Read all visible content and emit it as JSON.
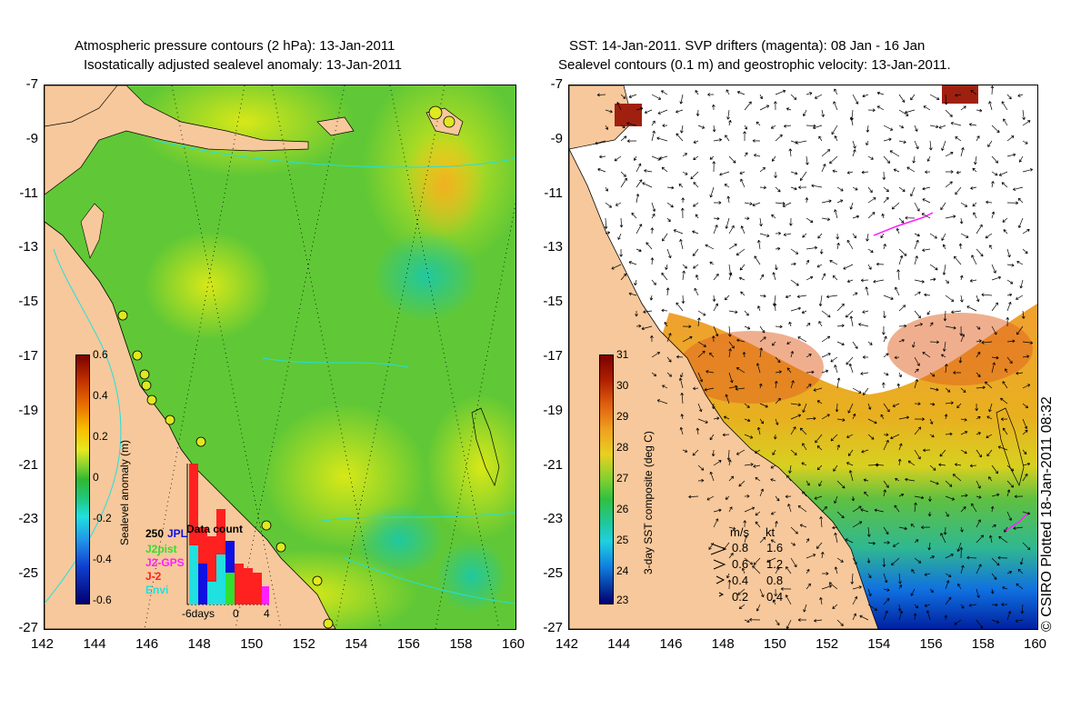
{
  "left": {
    "title1": "Atmospheric pressure contours (2 hPa): 13-Jan-2011",
    "title2": "Isostatically adjusted sealevel anomaly: 13-Jan-2011",
    "colorbar": {
      "label": "Sealevel anomaly (m)",
      "ticks": [
        "0.6",
        "0.4",
        "0.2",
        "0",
        "-0.2",
        "-0.4",
        "-0.6"
      ]
    },
    "data_count": {
      "title": "Data count",
      "ymax": "250",
      "x_labels": [
        "-6days",
        "0",
        "4"
      ],
      "missions": [
        {
          "name": "JPL",
          "color": "#1010e0"
        },
        {
          "name": "J2pist",
          "color": "#30e030"
        },
        {
          "name": "J2-GPS",
          "color": "#ff20ff"
        },
        {
          "name": "J-2",
          "color": "#ff2020"
        },
        {
          "name": "Envi",
          "color": "#20e0e0"
        }
      ]
    }
  },
  "right": {
    "title1": "SST: 14-Jan-2011. SVP drifters (magenta): 08 Jan - 16 Jan",
    "title2": "Sealevel contours (0.1 m) and geostrophic velocity: 13-Jan-2011.",
    "colorbar": {
      "label": "3-day SST composite (deg C)",
      "ticks": [
        "31",
        "30",
        "29",
        "28",
        "27",
        "26",
        "25",
        "24",
        "23"
      ]
    },
    "velocity_legend": {
      "units": [
        "m/s",
        "kt"
      ],
      "rows": [
        {
          "ms": "0.8",
          "kt": "1.6"
        },
        {
          "ms": "0.6",
          "kt": "1.2"
        },
        {
          "ms": "0.4",
          "kt": "0.8"
        },
        {
          "ms": "0.2",
          "kt": "0.4"
        }
      ]
    }
  },
  "axes": {
    "lat_ticks": [
      "-7",
      "-9",
      "-11",
      "-13",
      "-15",
      "-17",
      "-19",
      "-21",
      "-23",
      "-25",
      "-27"
    ],
    "lon_ticks": [
      "142",
      "144",
      "146",
      "148",
      "150",
      "152",
      "154",
      "156",
      "158",
      "160"
    ]
  },
  "credit": "© CSIRO Plotted 18-Jan-2011 08:32",
  "colors": {
    "land": "#f7c89b",
    "sea_green": "#5dc832",
    "sea_yellow": "#c8e61e"
  }
}
